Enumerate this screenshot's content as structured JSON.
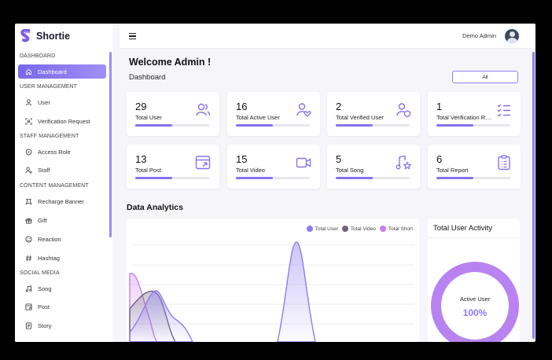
{
  "brand": {
    "name": "Shortie"
  },
  "sidebar": {
    "sections": [
      {
        "title": "DASHBOARD",
        "items": [
          {
            "label": "Dashboard",
            "icon": "home-icon",
            "active": true
          }
        ]
      },
      {
        "title": "USER MANAGEMENT",
        "items": [
          {
            "label": "User",
            "icon": "user-icon"
          },
          {
            "label": "Verification Request",
            "icon": "scan-icon"
          }
        ]
      },
      {
        "title": "STAFF MANAGEMENT",
        "items": [
          {
            "label": "Access Role",
            "icon": "shield-icon"
          },
          {
            "label": "Staff",
            "icon": "staff-icon"
          }
        ]
      },
      {
        "title": "CONTENT MANAGEMENT",
        "items": [
          {
            "label": "Recharge Banner",
            "icon": "banner-icon"
          },
          {
            "label": "Gift",
            "icon": "gift-icon"
          },
          {
            "label": "Reaction",
            "icon": "smile-icon"
          },
          {
            "label": "Hashtag",
            "icon": "hashtag-icon"
          }
        ]
      },
      {
        "title": "SOCIAL MEDIA",
        "items": [
          {
            "label": "Song",
            "icon": "music-icon"
          },
          {
            "label": "Post",
            "icon": "post-icon"
          },
          {
            "label": "Story",
            "icon": "story-icon"
          }
        ]
      }
    ]
  },
  "topbar": {
    "admin_name": "Demo Admin"
  },
  "main": {
    "welcome": "Welcome Admin !",
    "breadcrumb": "Dashboard",
    "filter": {
      "selected": "All"
    },
    "cards": [
      {
        "value": "29",
        "label": "Total User",
        "progress": 0.5,
        "icon": "users-icon"
      },
      {
        "value": "16",
        "label": "Total Active User",
        "progress": 0.5,
        "icon": "user-heart-icon"
      },
      {
        "value": "2",
        "label": "Total Verified User",
        "progress": 0.5,
        "icon": "user-verified-icon"
      },
      {
        "value": "1",
        "label": "Total Verification Request",
        "progress": 0.5,
        "icon": "checklist-icon"
      },
      {
        "value": "13",
        "label": "Total Post",
        "progress": 0.5,
        "icon": "post-share-icon"
      },
      {
        "value": "15",
        "label": "Total Video",
        "progress": 0.5,
        "icon": "video-icon"
      },
      {
        "value": "5",
        "label": "Total Song",
        "progress": 0.5,
        "icon": "music-star-icon"
      },
      {
        "value": "6",
        "label": "Total Report",
        "progress": 0.5,
        "icon": "report-icon"
      }
    ],
    "analytics_title": "Data Analytics",
    "activity": {
      "title": "Total User Activity",
      "label": "Active User",
      "value": "100%"
    }
  },
  "colors": {
    "accent": "#8472ec",
    "user": "#8e7cf0",
    "video": "#6f6479",
    "short": "#c47ef0"
  },
  "chart_data": {
    "type": "area",
    "series": [
      {
        "name": "Total User"
      },
      {
        "name": "Total Video"
      },
      {
        "name": "Total Short"
      }
    ],
    "legend": "top-right"
  }
}
